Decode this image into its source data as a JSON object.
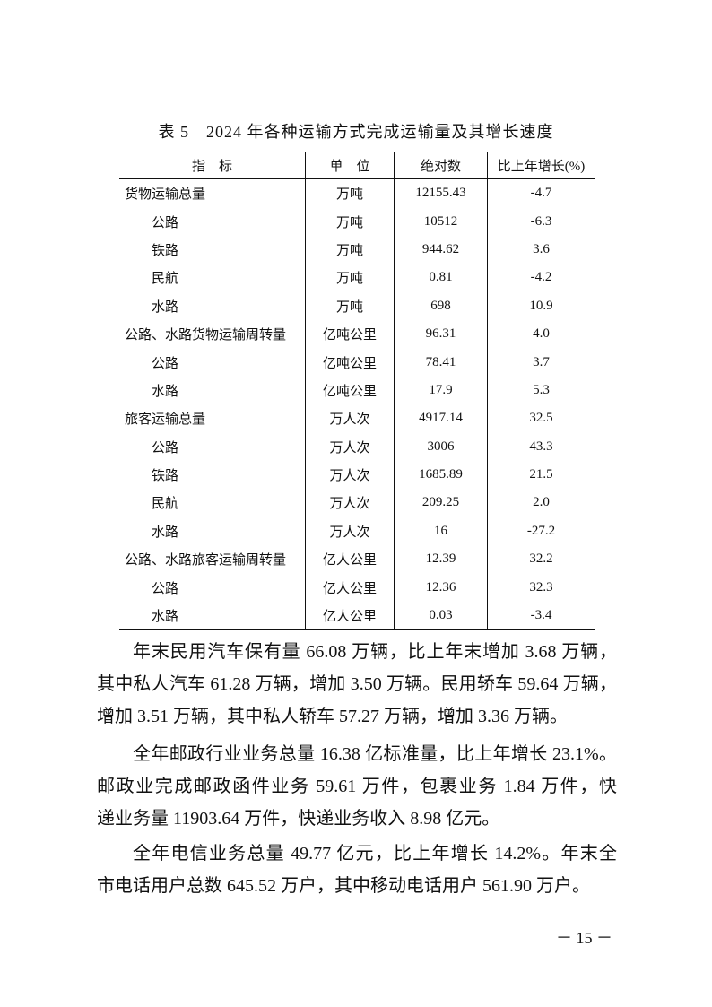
{
  "table": {
    "title": "表 5　2024 年各种运输方式完成运输量及其增长速度",
    "headers": [
      "指　标",
      "单　位",
      "绝对数",
      "比上年增长(%)"
    ],
    "rows": [
      {
        "indicator": "货物运输总量",
        "sub": false,
        "unit": "万吨",
        "value": "12155.43",
        "growth": "-4.7"
      },
      {
        "indicator": "公路",
        "sub": true,
        "unit": "万吨",
        "value": "10512",
        "growth": "-6.3"
      },
      {
        "indicator": "铁路",
        "sub": true,
        "unit": "万吨",
        "value": "944.62",
        "growth": "3.6"
      },
      {
        "indicator": "民航",
        "sub": true,
        "unit": "万吨",
        "value": "0.81",
        "growth": "-4.2"
      },
      {
        "indicator": "水路",
        "sub": true,
        "unit": "万吨",
        "value": "698",
        "growth": "10.9"
      },
      {
        "indicator": "公路、水路货物运输周转量",
        "sub": false,
        "unit": "亿吨公里",
        "value": "96.31",
        "growth": "4.0"
      },
      {
        "indicator": "公路",
        "sub": true,
        "unit": "亿吨公里",
        "value": "78.41",
        "growth": "3.7"
      },
      {
        "indicator": "水路",
        "sub": true,
        "unit": "亿吨公里",
        "value": "17.9",
        "growth": "5.3"
      },
      {
        "indicator": "旅客运输总量",
        "sub": false,
        "unit": "万人次",
        "value": "4917.14",
        "growth": "32.5"
      },
      {
        "indicator": "公路",
        "sub": true,
        "unit": "万人次",
        "value": "3006",
        "growth": "43.3"
      },
      {
        "indicator": "铁路",
        "sub": true,
        "unit": "万人次",
        "value": "1685.89",
        "growth": "21.5"
      },
      {
        "indicator": "民航",
        "sub": true,
        "unit": "万人次",
        "value": "209.25",
        "growth": "2.0"
      },
      {
        "indicator": "水路",
        "sub": true,
        "unit": "万人次",
        "value": "16",
        "growth": "-27.2"
      },
      {
        "indicator": "公路、水路旅客运输周转量",
        "sub": false,
        "unit": "亿人公里",
        "value": "12.39",
        "growth": "32.2"
      },
      {
        "indicator": "公路",
        "sub": true,
        "unit": "亿人公里",
        "value": "12.36",
        "growth": "32.3"
      },
      {
        "indicator": "水路",
        "sub": true,
        "unit": "亿人公里",
        "value": "0.03",
        "growth": "-3.4"
      }
    ]
  },
  "paragraphs": [
    {
      "lines": [
        "年末民用汽车保有量 66.08 万辆，比上年末增加 3.68 万辆，",
        "其中私人汽车 61.28 万辆，增加 3.50 万辆。民用轿车 59.64 万辆，",
        "增加 3.51 万辆，其中私人轿车 57.27 万辆，增加 3.36 万辆。"
      ]
    },
    {
      "lines": [
        "全年邮政行业业务总量 16.38 亿标准量，比上年增长 23.1%。",
        "邮政业完成邮政函件业务 59.61 万件，包裹业务 1.84 万件，快",
        "递业务量 11903.64 万件，快递业务收入 8.98 亿元。"
      ]
    },
    {
      "lines": [
        "全年电信业务总量 49.77 亿元，比上年增长 14.2%。年末全",
        "市电话用户总数 645.52 万户，其中移动电话用户 561.90 万户。"
      ]
    }
  ],
  "page_number": "－ 15 －"
}
